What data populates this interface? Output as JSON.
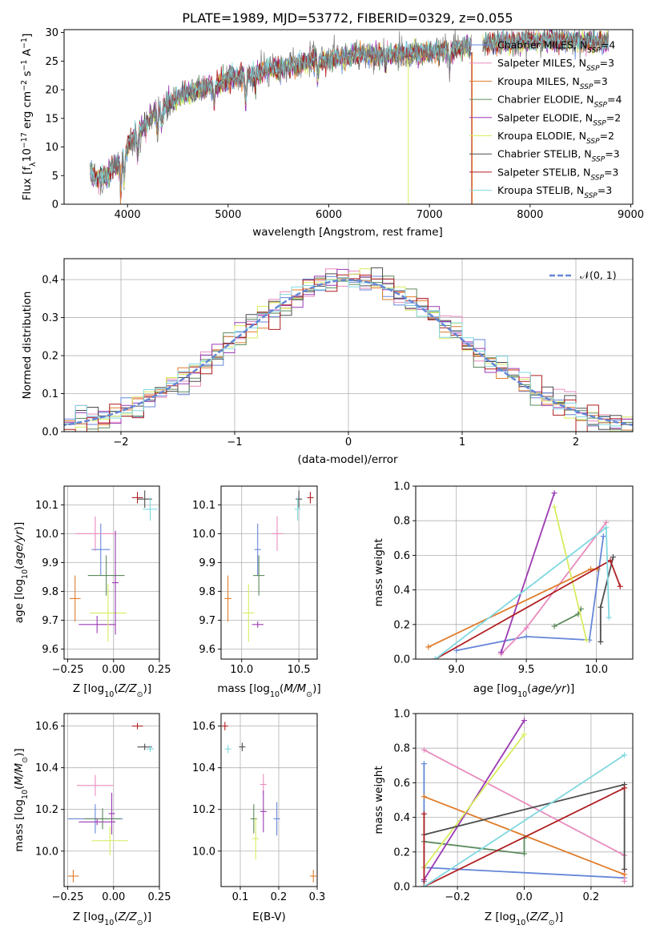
{
  "chart_data": [
    {
      "type": "line",
      "title": "PLATE=1989, MJD=53772, FIBERID=0329, z=0.055",
      "xlabel": "wavelength [Angstrom, rest frame]",
      "ylabel": "Flux [f_λ10^{-17} erg cm^{-2} s^{-1} A^{-1}]",
      "xlim": [
        3370,
        9020
      ],
      "ylim": [
        0,
        30.5
      ],
      "xticks": [
        4000,
        5000,
        6000,
        7000,
        8000,
        9000
      ],
      "yticks": [
        0,
        5,
        10,
        15,
        20,
        25,
        30
      ],
      "legend_position": "upper right",
      "spectrum_anchor_points": {
        "wavelength": [
          3630,
          3700,
          3800,
          3900,
          4000,
          4100,
          4200,
          4300,
          4400,
          4500,
          4600,
          4700,
          4800,
          4900,
          5000,
          5200,
          5400,
          5600,
          5800,
          6000,
          6200,
          6400,
          6600,
          6800,
          7000,
          7200,
          7400,
          7600,
          7800,
          8000,
          8200,
          8400,
          8600,
          8800
        ],
        "flux": [
          5.5,
          4.5,
          5.0,
          7.0,
          10.0,
          12.5,
          14.0,
          16.5,
          17.5,
          18.5,
          19.5,
          20.0,
          20.5,
          21.0,
          22.0,
          22.5,
          23.5,
          24.0,
          24.8,
          25.5,
          25.8,
          26.0,
          26.2,
          26.2,
          26.5,
          26.8,
          27.5,
          28.0,
          28.3,
          28.5,
          28.6,
          28.5,
          28.3,
          28.2
        ]
      },
      "series": [
        {
          "name": "Chabrier MILES, N_SSP=4",
          "color": "#6687d8"
        },
        {
          "name": "Salpeter MILES, N_SSP=3",
          "color": "#e98bbe"
        },
        {
          "name": "Kroupa MILES, N_SSP=3",
          "color": "#df7d2b"
        },
        {
          "name": "Chabrier ELODIE, N_SSP=4",
          "color": "#5c8a5c"
        },
        {
          "name": "Salpeter ELODIE, N_SSP=2",
          "color": "#9c3ab4"
        },
        {
          "name": "Kroupa ELODIE, N_SSP=2",
          "color": "#d8ec5e"
        },
        {
          "name": "Chabrier STELIB, N_SSP=3",
          "color": "#4d4d4d"
        },
        {
          "name": "Salpeter STELIB, N_SSP=3",
          "color": "#b01f22"
        },
        {
          "name": "Kroupa STELIB, N_SSP=3",
          "color": "#80d8e0"
        }
      ],
      "data_line_color": "#7f7f7f"
    },
    {
      "type": "line",
      "xlabel": "(data-model)/error",
      "ylabel": "Normed distribution",
      "xlim": [
        -2.5,
        2.5
      ],
      "ylim": [
        0,
        0.455
      ],
      "xticks": [
        -2,
        -1,
        0,
        1,
        2
      ],
      "yticks": [
        0.0,
        0.1,
        0.2,
        0.3,
        0.4
      ],
      "grid": true,
      "reference_curve": {
        "name": "𝒩(0, 1)",
        "style": "dashed",
        "color": "#6487d6"
      },
      "histogram_bin_width": 0.1
    },
    {
      "type": "scatter",
      "xlabel": "Z [log10(Z/Z⊙)]",
      "ylabel": "age  [log10(age/yr)]",
      "xlim": [
        -0.27,
        0.25
      ],
      "ylim": [
        9.565,
        10.165
      ],
      "xticks": [
        -0.25,
        0.0,
        0.25
      ],
      "yticks": [
        9.6,
        9.7,
        9.8,
        9.9,
        10.0,
        10.1
      ],
      "grid": true,
      "points": [
        {
          "x": -0.07,
          "y": 9.945,
          "xerr": 0.05,
          "yerr": 0.09,
          "color": "#6687d8"
        },
        {
          "x": -0.1,
          "y": 10.0,
          "xerr": 0.11,
          "yerr": 0.06,
          "color": "#e98bbe"
        },
        {
          "x": -0.21,
          "y": 9.775,
          "xerr": 0.03,
          "yerr": 0.08,
          "color": "#df7d2b"
        },
        {
          "x": -0.04,
          "y": 9.855,
          "xerr": 0.1,
          "yerr": 0.07,
          "color": "#5c8a5c"
        },
        {
          "x": -0.09,
          "y": 9.685,
          "xerr": 0.1,
          "yerr": 0.03,
          "color": "#9c3ab4"
        },
        {
          "x": -0.03,
          "y": 9.725,
          "xerr": 0.1,
          "yerr": 0.1,
          "color": "#d8ec5e"
        },
        {
          "x": 0.17,
          "y": 10.12,
          "xerr": 0.04,
          "yerr": 0.03,
          "color": "#4d4d4d"
        },
        {
          "x": 0.13,
          "y": 10.125,
          "xerr": 0.03,
          "yerr": 0.02,
          "color": "#b01f22"
        },
        {
          "x": 0.2,
          "y": 10.085,
          "xerr": 0.04,
          "yerr": 0.04,
          "color": "#80d8e0"
        },
        {
          "x": 0.01,
          "y": 9.83,
          "xerr": 0.0,
          "yerr": 0.18,
          "color": "#9c3ab4"
        }
      ]
    },
    {
      "type": "scatter",
      "xlabel": "mass [log10(M/M⊙)]",
      "ylabel": "",
      "xlim": [
        9.82,
        10.66
      ],
      "ylim": [
        9.565,
        10.165
      ],
      "xticks": [
        10.0,
        10.5
      ],
      "yticks": [
        9.6,
        9.7,
        9.8,
        9.9,
        10.0,
        10.1
      ],
      "grid": true,
      "points": [
        {
          "x": 10.14,
          "y": 9.945,
          "xerr": 0.0,
          "yerr": 0.09,
          "color": "#6687d8"
        },
        {
          "x": 10.31,
          "y": 10.0,
          "xerr": 0.05,
          "yerr": 0.06,
          "color": "#e98bbe"
        },
        {
          "x": 9.88,
          "y": 9.775,
          "xerr": 0.03,
          "yerr": 0.08,
          "color": "#df7d2b"
        },
        {
          "x": 10.15,
          "y": 9.855,
          "xerr": 0.05,
          "yerr": 0.07,
          "color": "#5c8a5c"
        },
        {
          "x": 10.14,
          "y": 9.685,
          "xerr": 0.05,
          "yerr": 0.0,
          "color": "#9c3ab4"
        },
        {
          "x": 10.06,
          "y": 9.725,
          "xerr": 0.05,
          "yerr": 0.1,
          "color": "#d8ec5e"
        },
        {
          "x": 10.5,
          "y": 10.12,
          "xerr": 0.0,
          "yerr": 0.03,
          "color": "#4d4d4d"
        },
        {
          "x": 10.6,
          "y": 10.125,
          "xerr": 0.0,
          "yerr": 0.02,
          "color": "#b01f22"
        },
        {
          "x": 10.49,
          "y": 10.085,
          "xerr": 0.0,
          "yerr": 0.04,
          "color": "#80d8e0"
        }
      ]
    },
    {
      "type": "line",
      "xlabel": "age  [log10(age/yr)]",
      "ylabel": "mass weight",
      "xlim": [
        8.71,
        10.26
      ],
      "ylim": [
        0,
        1.0
      ],
      "xticks": [
        9.0,
        9.5,
        10.0
      ],
      "yticks": [
        0.0,
        0.2,
        0.4,
        0.6,
        0.8,
        1.0
      ],
      "grid": true,
      "series": [
        {
          "name": "Chabrier MILES",
          "color": "#6687d8",
          "x": [
            9.0,
            9.5,
            9.95,
            10.05
          ],
          "y": [
            0.05,
            0.13,
            0.11,
            0.71
          ]
        },
        {
          "name": "Salpeter MILES",
          "color": "#e98bbe",
          "x": [
            9.32,
            9.5,
            10.07
          ],
          "y": [
            0.03,
            0.18,
            0.79
          ]
        },
        {
          "name": "Kroupa MILES",
          "color": "#df7d2b",
          "x": [
            8.8,
            9.96,
            10.01
          ],
          "y": [
            0.07,
            0.52,
            0.52
          ]
        },
        {
          "name": "Chabrier ELODIE",
          "color": "#5c8a5c",
          "x": [
            9.7,
            9.87,
            9.89
          ],
          "y": [
            0.19,
            0.26,
            0.29
          ]
        },
        {
          "name": "Salpeter ELODIE",
          "color": "#9c3ab4",
          "x": [
            9.32,
            9.7
          ],
          "y": [
            0.04,
            0.96
          ]
        },
        {
          "name": "Kroupa ELODIE",
          "color": "#d8ec5e",
          "x": [
            9.7,
            9.93
          ],
          "y": [
            0.88,
            0.11
          ]
        },
        {
          "name": "Chabrier STELIB",
          "color": "#4d4d4d",
          "x": [
            10.03,
            10.03,
            10.12
          ],
          "y": [
            0.1,
            0.3,
            0.59
          ]
        },
        {
          "name": "Salpeter STELIB",
          "color": "#b01f22",
          "x": [
            8.85,
            10.1,
            10.17
          ],
          "y": [
            0.0,
            0.57,
            0.42
          ]
        },
        {
          "name": "Kroupa STELIB",
          "color": "#80d8e0",
          "x": [
            8.85,
            10.07,
            10.09
          ],
          "y": [
            0.0,
            0.76,
            0.24
          ]
        }
      ]
    },
    {
      "type": "scatter",
      "xlabel": "Z [log10(Z/Z⊙)]",
      "ylabel": "mass [log10(M/M⊙)]",
      "xlim": [
        -0.27,
        0.25
      ],
      "ylim": [
        9.83,
        10.66
      ],
      "xticks": [
        -0.25,
        0.0,
        0.25
      ],
      "yticks": [
        10.0,
        10.2,
        10.4,
        10.6
      ],
      "grid": true,
      "points": [
        {
          "x": -0.1,
          "y": 10.155,
          "xerr": 0.15,
          "yerr": 0.07,
          "color": "#6687d8"
        },
        {
          "x": -0.1,
          "y": 10.315,
          "xerr": 0.1,
          "yerr": 0.05,
          "color": "#e98bbe"
        },
        {
          "x": -0.22,
          "y": 9.88,
          "xerr": 0.03,
          "yerr": 0.03,
          "color": "#df7d2b"
        },
        {
          "x": -0.06,
          "y": 10.155,
          "xerr": 0.1,
          "yerr": 0.05,
          "color": "#5c8a5c"
        },
        {
          "x": -0.09,
          "y": 10.14,
          "xerr": 0.1,
          "yerr": 0.0,
          "color": "#9c3ab4"
        },
        {
          "x": -0.02,
          "y": 10.05,
          "xerr": 0.1,
          "yerr": 0.07,
          "color": "#d8ec5e"
        },
        {
          "x": 0.17,
          "y": 10.5,
          "xerr": 0.04,
          "yerr": 0.0,
          "color": "#4d4d4d"
        },
        {
          "x": 0.13,
          "y": 10.6,
          "xerr": 0.03,
          "yerr": 0.0,
          "color": "#b01f22"
        },
        {
          "x": 0.2,
          "y": 10.49,
          "xerr": 0.02,
          "yerr": 0.0,
          "color": "#80d8e0"
        },
        {
          "x": -0.01,
          "y": 10.18,
          "xerr": 0.0,
          "yerr": 0.1,
          "color": "#9c3ab4"
        }
      ]
    },
    {
      "type": "scatter",
      "xlabel": "E(B-V)",
      "ylabel": "",
      "xlim": [
        0.05,
        0.3
      ],
      "ylim": [
        9.83,
        10.66
      ],
      "xticks": [
        0.1,
        0.2,
        0.3
      ],
      "yticks": [
        10.0,
        10.2,
        10.4,
        10.6
      ],
      "grid": true,
      "points": [
        {
          "x": 0.195,
          "y": 10.155,
          "xerr": 0.0,
          "yerr": 0.08,
          "color": "#6687d8"
        },
        {
          "x": 0.16,
          "y": 10.32,
          "xerr": 0.0,
          "yerr": 0.05,
          "color": "#e98bbe"
        },
        {
          "x": 0.29,
          "y": 9.88,
          "xerr": 0.0,
          "yerr": 0.03,
          "color": "#df7d2b"
        },
        {
          "x": 0.135,
          "y": 10.155,
          "xerr": 0.0,
          "yerr": 0.07,
          "color": "#5c8a5c"
        },
        {
          "x": 0.16,
          "y": 10.19,
          "xerr": 0.0,
          "yerr": 0.1,
          "color": "#9c3ab4"
        },
        {
          "x": 0.14,
          "y": 10.06,
          "xerr": 0.0,
          "yerr": 0.1,
          "color": "#d8ec5e"
        },
        {
          "x": 0.105,
          "y": 10.5,
          "xerr": 0.0,
          "yerr": 0.02,
          "color": "#4d4d4d"
        },
        {
          "x": 0.06,
          "y": 10.6,
          "xerr": 0.0,
          "yerr": 0.02,
          "color": "#b01f22"
        },
        {
          "x": 0.068,
          "y": 10.49,
          "xerr": 0.0,
          "yerr": 0.02,
          "color": "#80d8e0"
        }
      ]
    },
    {
      "type": "line",
      "xlabel": "Z [log10(Z/Z⊙)]",
      "ylabel": "mass weight",
      "xlim": [
        -0.325,
        0.325
      ],
      "ylim": [
        0,
        1.0
      ],
      "xticks": [
        -0.2,
        0.0,
        0.2
      ],
      "yticks": [
        0.0,
        0.2,
        0.4,
        0.6,
        0.8,
        1.0
      ],
      "grid": true,
      "series": [
        {
          "name": "Chabrier MILES",
          "color": "#6687d8",
          "x": [
            -0.3,
            -0.3,
            -0.3,
            0.3
          ],
          "y": [
            0.71,
            0.03,
            0.11,
            0.05
          ]
        },
        {
          "name": "Salpeter MILES",
          "color": "#e98bbe",
          "x": [
            -0.3,
            0.3,
            0.3
          ],
          "y": [
            0.79,
            0.18,
            0.03
          ]
        },
        {
          "name": "Kroupa MILES",
          "color": "#df7d2b",
          "x": [
            -0.3,
            0.3
          ],
          "y": [
            0.52,
            0.07
          ]
        },
        {
          "name": "Chabrier ELODIE",
          "color": "#5c8a5c",
          "x": [
            -0.3,
            0.0,
            0.0
          ],
          "y": [
            0.26,
            0.19,
            0.28
          ]
        },
        {
          "name": "Salpeter ELODIE",
          "color": "#9c3ab4",
          "x": [
            -0.3,
            0.0
          ],
          "y": [
            0.04,
            0.96
          ]
        },
        {
          "name": "Kroupa ELODIE",
          "color": "#d8ec5e",
          "x": [
            -0.3,
            0.0
          ],
          "y": [
            0.11,
            0.88
          ]
        },
        {
          "name": "Chabrier STELIB",
          "color": "#4d4d4d",
          "x": [
            -0.3,
            0.3,
            0.3
          ],
          "y": [
            0.3,
            0.59,
            0.1
          ]
        },
        {
          "name": "Salpeter STELIB",
          "color": "#b01f22",
          "x": [
            -0.3,
            -0.3,
            0.3
          ],
          "y": [
            0.42,
            0.0,
            0.57
          ]
        },
        {
          "name": "Kroupa STELIB",
          "color": "#80d8e0",
          "x": [
            -0.3,
            0.3
          ],
          "y": [
            0.0,
            0.76
          ]
        }
      ]
    }
  ]
}
